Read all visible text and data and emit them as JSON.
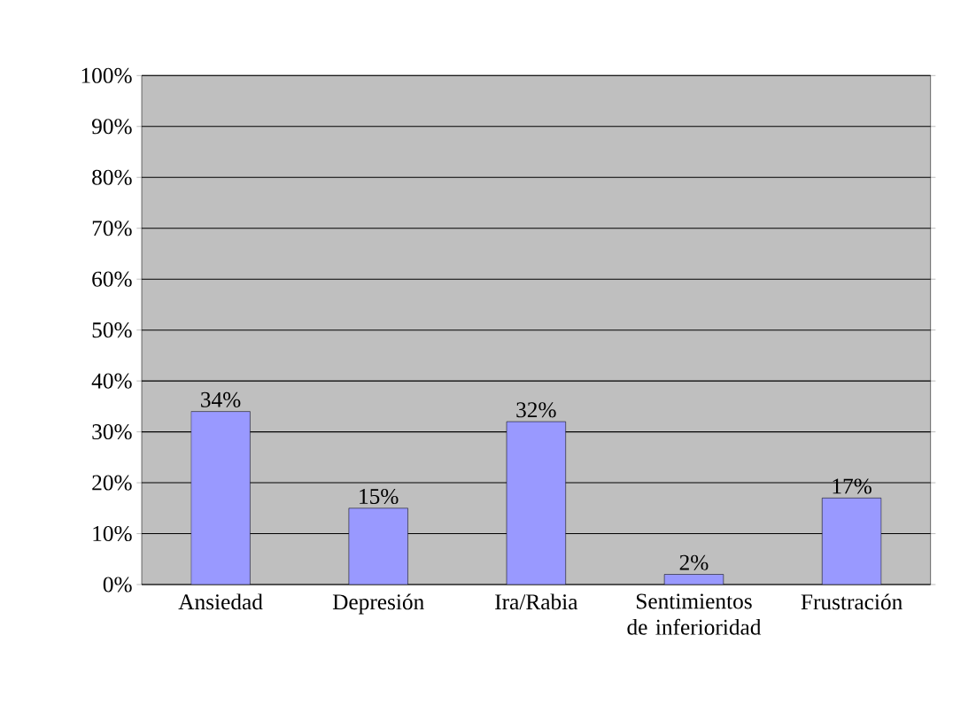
{
  "chart_data": {
    "type": "bar",
    "categories": [
      "Ansiedad",
      "Depresión",
      "Ira/Rabia",
      "Sentimientos de inferioridad",
      "Frustración"
    ],
    "values": [
      34,
      15,
      32,
      2,
      17
    ],
    "value_labels": [
      "34%",
      "15%",
      "32%",
      "2%",
      "17%"
    ],
    "color": "#9999ff",
    "ylim": [
      0,
      100
    ],
    "yticks": [
      {
        "value": 0,
        "label": "0%"
      },
      {
        "value": 10,
        "label": "10%"
      },
      {
        "value": 20,
        "label": "20%"
      },
      {
        "value": 30,
        "label": "30%"
      },
      {
        "value": 40,
        "label": "40%"
      },
      {
        "value": 50,
        "label": "50%"
      },
      {
        "value": 60,
        "label": "60%"
      },
      {
        "value": 70,
        "label": "70%"
      },
      {
        "value": 80,
        "label": "80%"
      },
      {
        "value": 90,
        "label": "90%"
      },
      {
        "value": 100,
        "label": "100%"
      }
    ],
    "grid": "y"
  }
}
